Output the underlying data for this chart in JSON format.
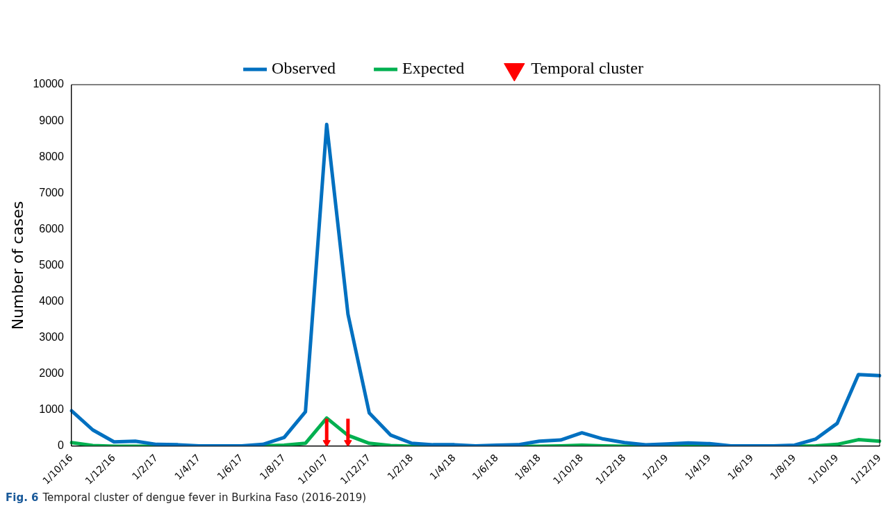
{
  "chart_data": {
    "type": "line",
    "ylabel": "Number of cases",
    "categories": [
      "1/10/16",
      null,
      "1/12/16",
      null,
      "1/2/17",
      null,
      "1/4/17",
      null,
      "1/6/17",
      null,
      "1/8/17",
      null,
      "1/10/17",
      null,
      "1/12/17",
      null,
      "1/2/18",
      null,
      "1/4/18",
      null,
      "1/6/18",
      null,
      "1/8/18",
      null,
      "1/10/18",
      null,
      "1/12/18",
      null,
      "1/2/19",
      null,
      "1/4/19",
      null,
      "1/6/19",
      null,
      "1/8/19",
      null,
      "1/10/19",
      null,
      "1/12/19"
    ],
    "series": [
      {
        "name": "Observed",
        "color": "#0070c0",
        "values": [
          980,
          450,
          120,
          140,
          50,
          40,
          10,
          10,
          10,
          50,
          240,
          950,
          8900,
          3650,
          920,
          310,
          80,
          40,
          40,
          10,
          30,
          40,
          140,
          170,
          370,
          200,
          100,
          40,
          60,
          90,
          70,
          10,
          10,
          10,
          30,
          200,
          630,
          1980,
          1950
        ]
      },
      {
        "name": "Expected",
        "color": "#00b050",
        "values": [
          100,
          20,
          0,
          0,
          0,
          0,
          0,
          0,
          0,
          10,
          30,
          80,
          780,
          300,
          80,
          20,
          0,
          0,
          0,
          0,
          0,
          0,
          0,
          10,
          30,
          10,
          0,
          0,
          0,
          0,
          0,
          0,
          0,
          0,
          0,
          10,
          50,
          180,
          140
        ]
      },
      {
        "name": "Temporal cluster",
        "type": "scatter",
        "marker": "triangle",
        "color": "#ff0000",
        "values": [
          null,
          null,
          null,
          null,
          null,
          null,
          null,
          null,
          null,
          null,
          null,
          null,
          100,
          100,
          null,
          null,
          null,
          null,
          null,
          null,
          null,
          null,
          null,
          null,
          null,
          null,
          null,
          null,
          null,
          null,
          null,
          null,
          null,
          null,
          null,
          null,
          null,
          null,
          null
        ],
        "errors": [
          null,
          null,
          null,
          null,
          null,
          null,
          null,
          null,
          null,
          null,
          null,
          null,
          [
            100,
            760
          ],
          [
            100,
            760
          ],
          null,
          null,
          null,
          null,
          null,
          null,
          null,
          null,
          null,
          null,
          null,
          null,
          null,
          null,
          null,
          null,
          null,
          null,
          null,
          null,
          null,
          null,
          null,
          null,
          null
        ]
      }
    ],
    "ylim": [
      0,
      10000
    ],
    "yticks": [
      0,
      1000,
      2000,
      3000,
      4000,
      5000,
      6000,
      7000,
      8000,
      9000,
      10000
    ],
    "grid": false,
    "legend": "top",
    "marker": "none",
    "annotations": [
      "Fig. 6",
      "Temporal cluster of dengue fever in Burkina Faso (2016-2019)"
    ]
  }
}
